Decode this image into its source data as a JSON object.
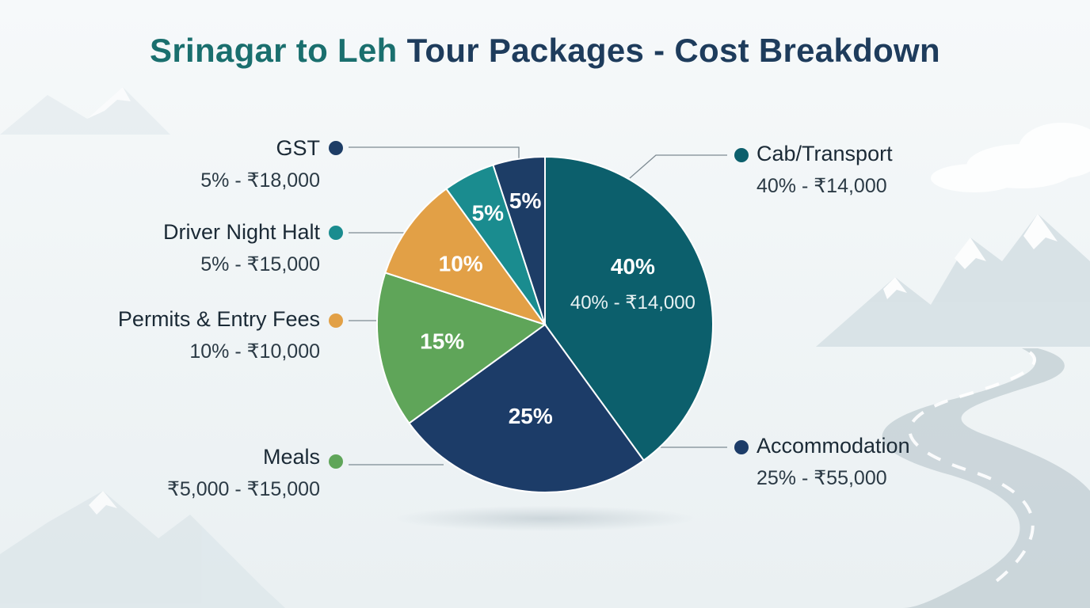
{
  "title": {
    "part1": "Srinagar to Leh",
    "part2": " Tour Packages - Cost Breakdown"
  },
  "colors": {
    "title_accent": "#1a6f6e",
    "title_main": "#1e3c5c",
    "cab": "#0c5f6c",
    "accommodation": "#1c3c68",
    "meals": "#5fa559",
    "permits": "#e2a046",
    "driver_halt": "#1a8c8f",
    "gst": "#1d3d66"
  },
  "chart_data": {
    "type": "pie",
    "start_angle_deg": 0,
    "direction": "clockwise",
    "slices": [
      {
        "label": "Cab/Transport",
        "percent": 40,
        "slice_label": "40%",
        "inner_detail": "40% - ₹14,000",
        "detail": "40% - ₹14,000",
        "color": "#0c5f6c"
      },
      {
        "label": "Accommodation",
        "percent": 25,
        "slice_label": "25%",
        "detail": "25% - ₹55,000",
        "color": "#1c3c68"
      },
      {
        "label": "Meals",
        "percent": 15,
        "slice_label": "15%",
        "detail": "₹5,000 - ₹15,000",
        "color": "#5fa559"
      },
      {
        "label": "Permits & Entry Fees",
        "percent": 10,
        "slice_label": "10%",
        "detail": "10% - ₹10,000",
        "color": "#e2a046"
      },
      {
        "label": "Driver Night Halt",
        "percent": 5,
        "slice_label": "5%",
        "detail": "5% - ₹15,000",
        "color": "#1a8c8f"
      },
      {
        "label": "GST",
        "percent": 5,
        "slice_label": "5%",
        "detail": "5% - ₹18,000",
        "color": "#1d3d66"
      }
    ],
    "legend_placement": "callouts on both sides"
  },
  "callouts": {
    "gst": {
      "name": "GST",
      "detail": "5% - ₹18,000"
    },
    "driver": {
      "name": "Driver Night Halt",
      "detail": "5% - ₹15,000"
    },
    "permits": {
      "name": "Permits & Entry Fees",
      "detail": "10% - ₹10,000"
    },
    "meals": {
      "name": "Meals",
      "detail": "₹5,000 - ₹15,000"
    },
    "cab": {
      "name": "Cab/Transport",
      "detail": "40% - ₹14,000"
    },
    "accommodation": {
      "name": "Accommodation",
      "detail": "25% - ₹55,000"
    }
  }
}
